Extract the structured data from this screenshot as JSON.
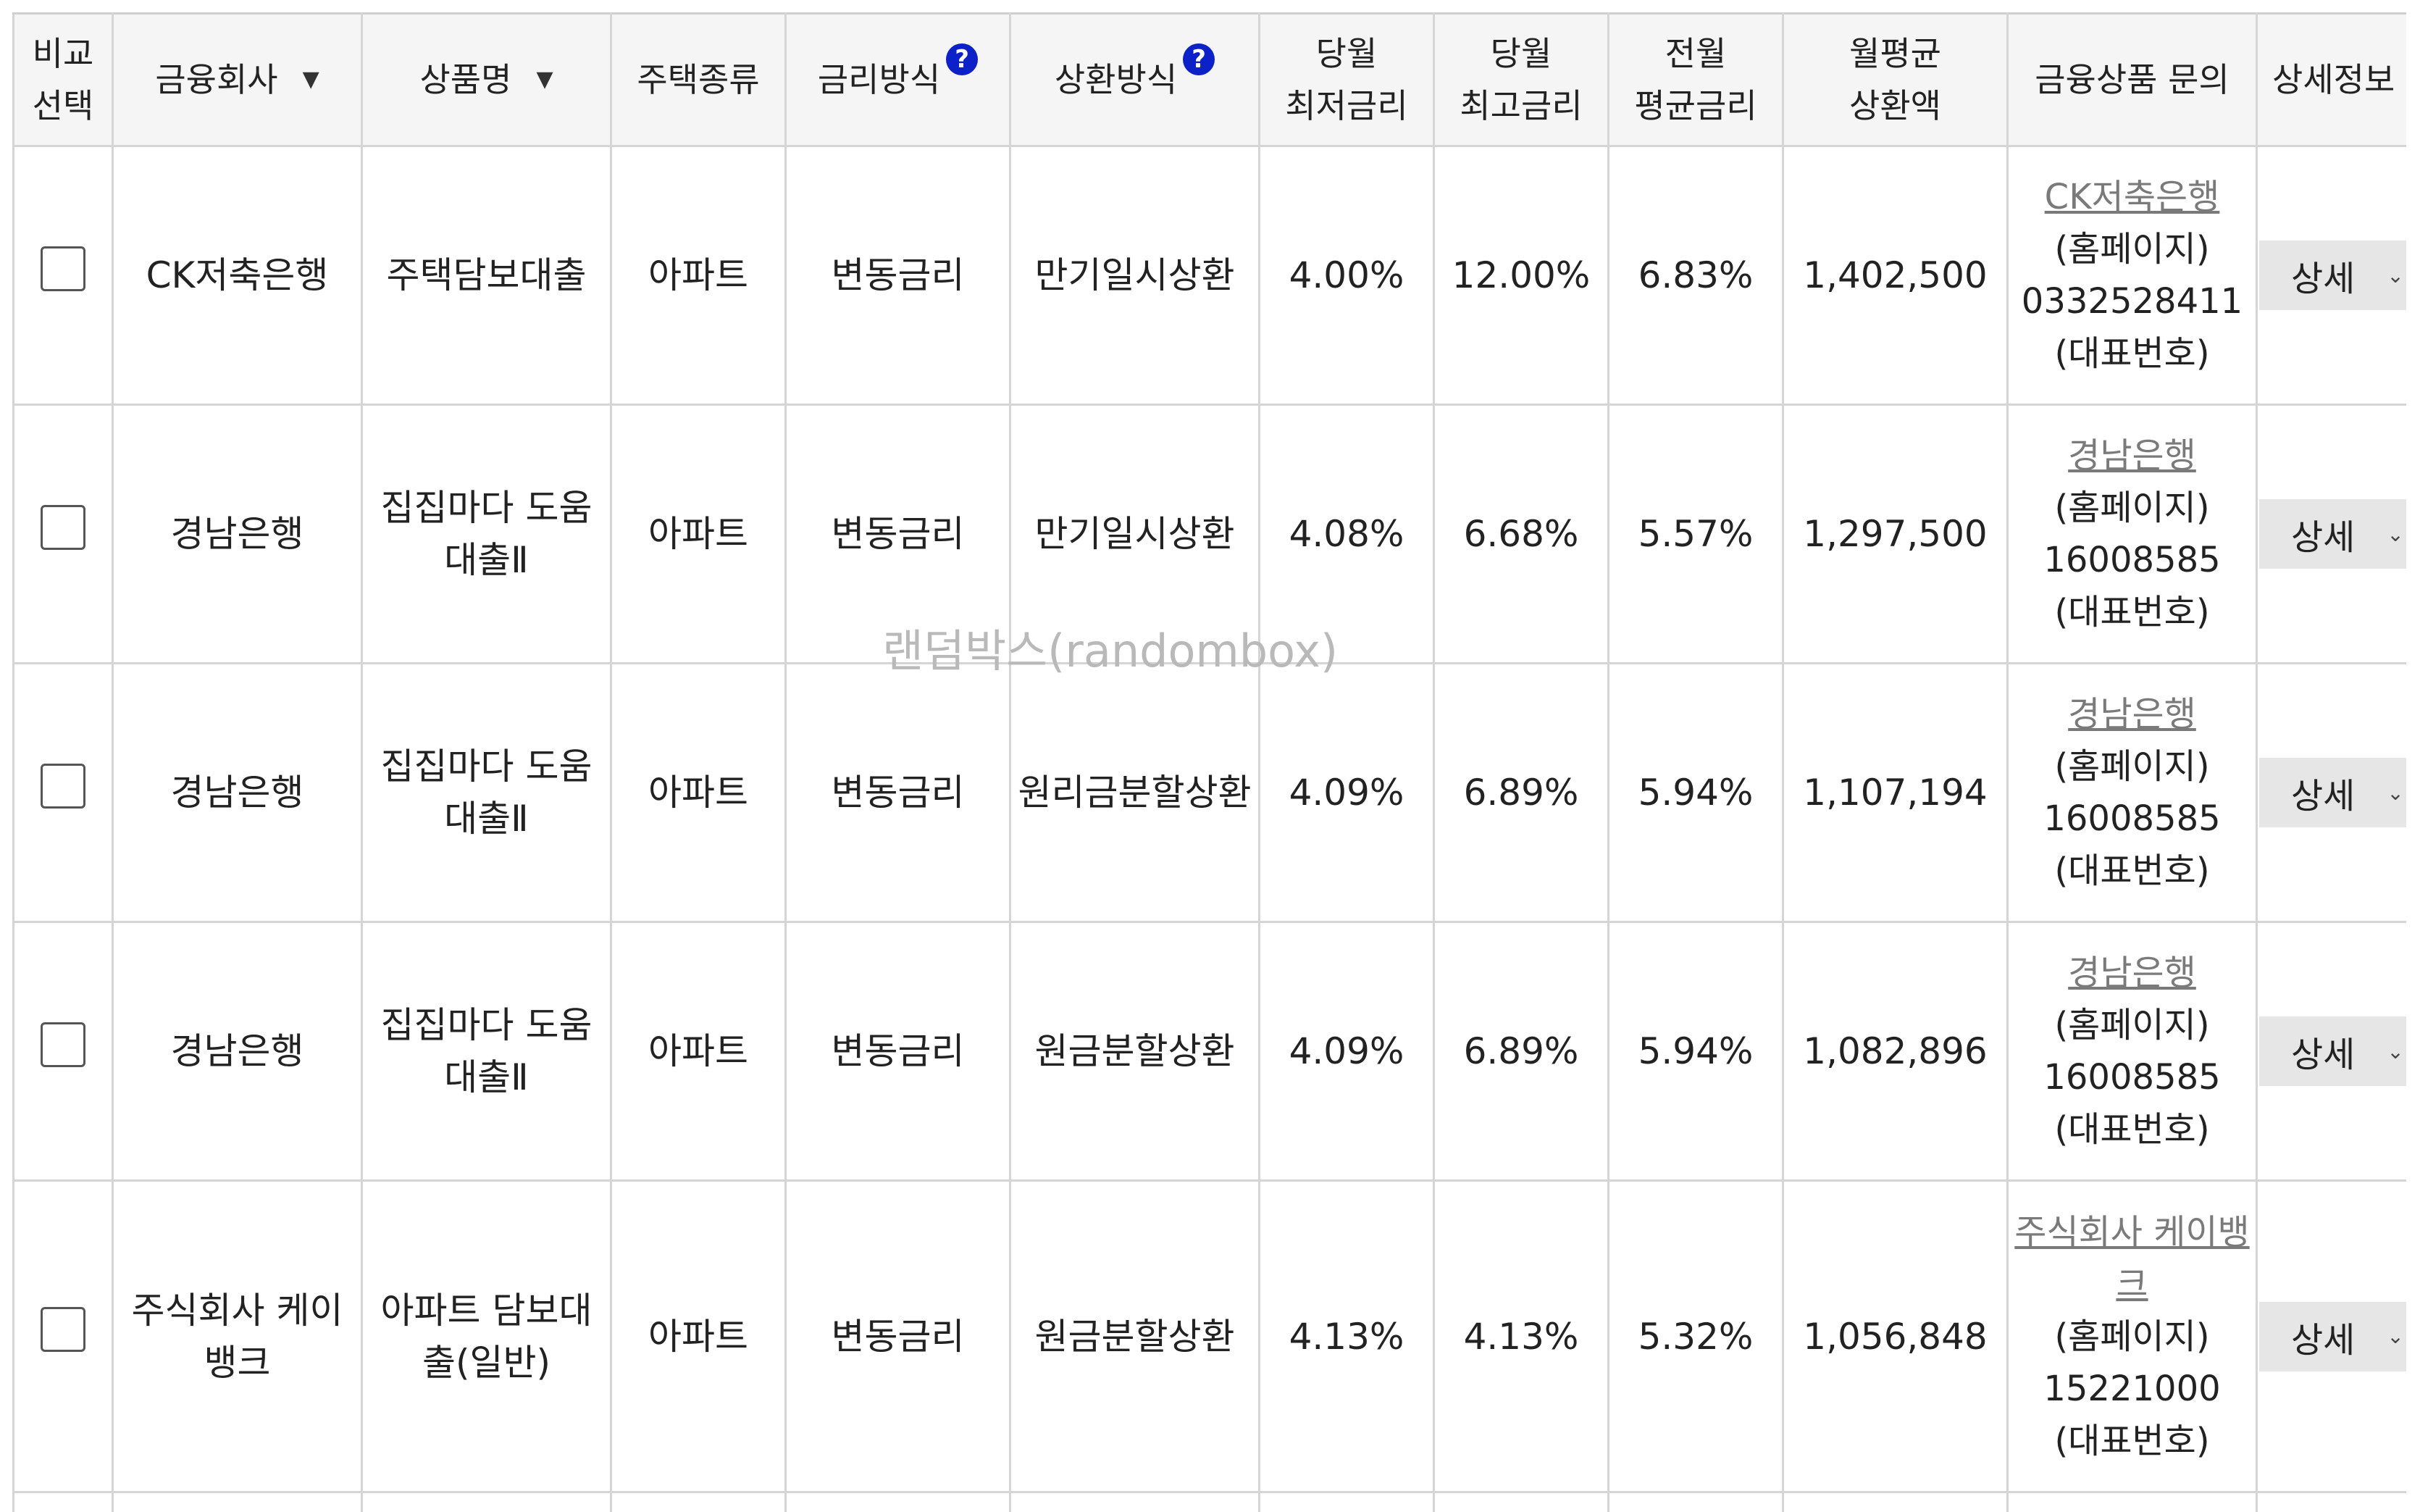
{
  "header": {
    "compare": [
      "비교",
      "선택"
    ],
    "company": "금융회사",
    "company_sort": "▼",
    "product": "상품명",
    "product_sort": "▼",
    "house_type": "주택종류",
    "rate_type": "금리방식",
    "repay_type": "상환방식",
    "min_rate": [
      "당월",
      "최저금리"
    ],
    "min_rate_sort": "▼",
    "max_rate": [
      "당월",
      "최고금리"
    ],
    "max_rate_sort": "▲",
    "avg_rate": [
      "전월",
      "평균금리"
    ],
    "avg_rate_sort": "▲",
    "monthly": [
      "월평균",
      "상환액"
    ],
    "monthly_sort": "▲",
    "inquiry": "금융상품 문의",
    "detail": "상세정보",
    "help_glyph": "?"
  },
  "rows": [
    {
      "company": "CK저축은행",
      "product": "주택담보대출",
      "house_type": "아파트",
      "rate_type": "변동금리",
      "repay_type": "만기일시상환",
      "min_rate": "4.00%",
      "max_rate": "12.00%",
      "avg_rate": "6.83%",
      "monthly": "1,402,500",
      "inquiry_bank": "CK저축은행",
      "inquiry_homepage": "(홈페이지)",
      "inquiry_phone": "0332528411",
      "inquiry_phone_label": "(대표번호)",
      "detail_label": "상세"
    },
    {
      "company": "경남은행",
      "product": "집집마다 도움대출Ⅱ",
      "house_type": "아파트",
      "rate_type": "변동금리",
      "repay_type": "만기일시상환",
      "min_rate": "4.08%",
      "max_rate": "6.68%",
      "avg_rate": "5.57%",
      "monthly": "1,297,500",
      "inquiry_bank": "경남은행",
      "inquiry_homepage": "(홈페이지)",
      "inquiry_phone": "16008585",
      "inquiry_phone_label": "(대표번호)",
      "detail_label": "상세"
    },
    {
      "company": "경남은행",
      "product": "집집마다 도움대출Ⅱ",
      "house_type": "아파트",
      "rate_type": "변동금리",
      "repay_type": "원리금분할상환",
      "min_rate": "4.09%",
      "max_rate": "6.89%",
      "avg_rate": "5.94%",
      "monthly": "1,107,194",
      "inquiry_bank": "경남은행",
      "inquiry_homepage": "(홈페이지)",
      "inquiry_phone": "16008585",
      "inquiry_phone_label": "(대표번호)",
      "detail_label": "상세"
    },
    {
      "company": "경남은행",
      "product": "집집마다 도움대출Ⅱ",
      "house_type": "아파트",
      "rate_type": "변동금리",
      "repay_type": "원금분할상환",
      "min_rate": "4.09%",
      "max_rate": "6.89%",
      "avg_rate": "5.94%",
      "monthly": "1,082,896",
      "inquiry_bank": "경남은행",
      "inquiry_homepage": "(홈페이지)",
      "inquiry_phone": "16008585",
      "inquiry_phone_label": "(대표번호)",
      "detail_label": "상세"
    },
    {
      "company": "주식회사 케이뱅크",
      "product": "아파트 담보대출(일반)",
      "house_type": "아파트",
      "rate_type": "변동금리",
      "repay_type": "원금분할상환",
      "min_rate": "4.13%",
      "max_rate": "4.13%",
      "avg_rate": "5.32%",
      "monthly": "1,056,848",
      "inquiry_bank": "주식회사 케이뱅크",
      "inquiry_homepage": "(홈페이지)",
      "inquiry_phone": "15221000",
      "inquiry_phone_label": "(대표번호)",
      "detail_label": "상세"
    }
  ],
  "watermark": "랜덤박스(randombox)"
}
